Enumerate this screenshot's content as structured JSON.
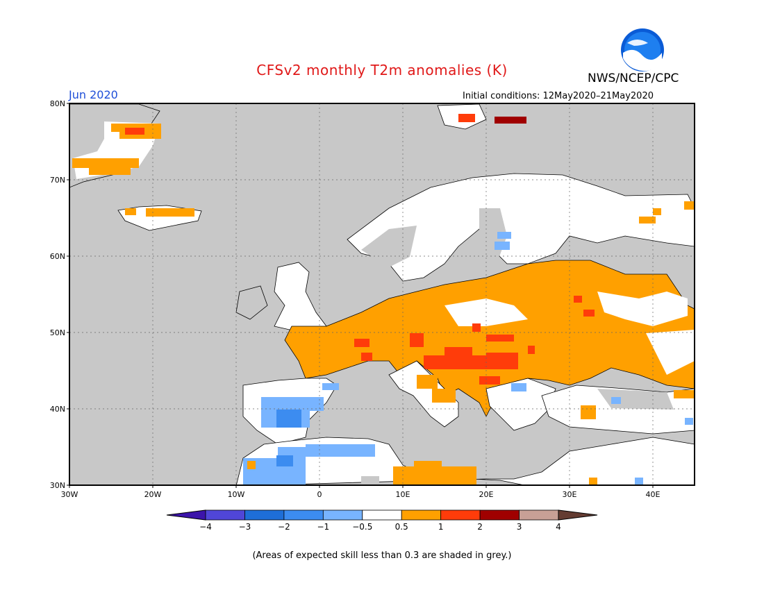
{
  "header": {
    "title": "CFSv2 monthly T2m anomalies (K)",
    "agency": "NWS/NCEP/CPC",
    "logo_text": "NOAA",
    "valid_month": "Jun 2020",
    "initial_conditions": "Initial conditions: 12May2020–21May2020"
  },
  "map": {
    "lat_labels": [
      "80N",
      "70N",
      "60N",
      "50N",
      "40N",
      "30N"
    ],
    "lon_labels": [
      "30W",
      "20W",
      "10W",
      "0",
      "10E",
      "20E",
      "30E",
      "40E"
    ],
    "lon_range": [
      -30,
      45
    ],
    "lat_range": [
      30,
      80
    ],
    "grid": true,
    "colors": {
      "skill_grey": "#c8c8c8",
      "neutral": "#ffffff",
      "warm_05": "#ffa000",
      "warm_1": "#ff3c0a",
      "warm_2": "#a00000",
      "cool_05": "#78b4ff",
      "cool_1": "#3c8cf0"
    }
  },
  "colorbar": {
    "tick_labels": [
      "−4",
      "−3",
      "−2",
      "−1",
      "−0.5",
      "0.5",
      "1",
      "2",
      "3",
      "4"
    ],
    "colors": [
      "#3c14aa",
      "#5046d7",
      "#1e6ed7",
      "#3c8cf0",
      "#78b4ff",
      "#ffffff",
      "#ffa000",
      "#ff3c0a",
      "#a00000",
      "#c8a096",
      "#643c32"
    ]
  },
  "footnote": "(Areas of expected skill less than 0.3 are shaded in grey.)"
}
